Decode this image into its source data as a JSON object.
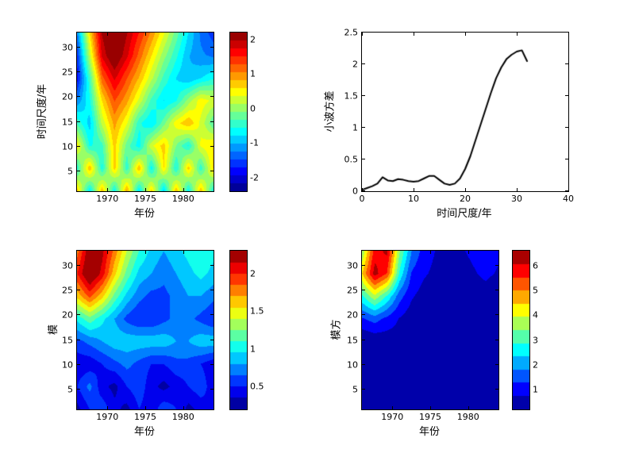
{
  "figure": {
    "background": "#ffffff",
    "colormap": "jet",
    "line_color": "#000000"
  },
  "chart_data": [
    {
      "type": "heatmap",
      "title": "",
      "xlabel": "年份",
      "ylabel": "时间尺度/年",
      "xlim": [
        1966,
        1984
      ],
      "ylim": [
        1,
        33
      ],
      "xticks": [
        1970,
        1975,
        1980
      ],
      "yticks": [
        5,
        10,
        15,
        20,
        25,
        30
      ],
      "colorbar": {
        "vmin": -2.4,
        "vmax": 2.2,
        "levels": 20,
        "ticks": [
          -2,
          -1,
          0,
          1,
          2
        ]
      },
      "heatmap": {
        "vmin": -2.4,
        "vmax": 2.2,
        "levels": 20,
        "grid": [
          [
            0.7,
            -0.8,
            0.8,
            -0.7,
            0.9,
            -0.8,
            0.7,
            -0.9,
            0.8,
            -0.7,
            0.8,
            -0.6
          ],
          [
            -0.5,
            0.8,
            -0.6,
            0.7,
            -0.5,
            0.8,
            -0.7,
            0.6,
            -0.6,
            0.7,
            -0.5,
            0.6
          ],
          [
            0.5,
            -0.6,
            -0.4,
            0.7,
            -0.2,
            -0.7,
            0.3,
            0.7,
            -0.1,
            -0.6,
            0.4,
            0.6
          ],
          [
            -0.4,
            -0.9,
            0.2,
            0.9,
            0.4,
            -0.5,
            -0.8,
            -0.2,
            0.5,
            0.8,
            0.3,
            -0.3
          ],
          [
            -1.2,
            -0.6,
            0.6,
            1.3,
            0.9,
            0.3,
            -0.4,
            -0.8,
            -0.6,
            0.0,
            0.5,
            0.3
          ],
          [
            -1.8,
            -0.4,
            1.2,
            1.8,
            1.3,
            0.8,
            0.2,
            -0.4,
            -0.8,
            -1.0,
            -0.8,
            -0.6
          ],
          [
            -1.6,
            0.2,
            1.8,
            2.3,
            1.8,
            1.2,
            0.6,
            0.0,
            -0.5,
            -1.0,
            -1.2,
            -1.3
          ],
          [
            -1.2,
            0.6,
            2.0,
            2.4,
            2.0,
            1.5,
            1.0,
            0.4,
            -0.2,
            -0.8,
            -1.3,
            -1.6
          ]
        ]
      }
    },
    {
      "type": "line",
      "title": "",
      "xlabel": "时间尺度/年",
      "ylabel": "小波方差",
      "xlim": [
        0,
        40
      ],
      "ylim": [
        0,
        2.5
      ],
      "xticks": [
        0,
        10,
        20,
        30,
        40
      ],
      "yticks": [
        0,
        0.5,
        1,
        1.5,
        2,
        2.5
      ],
      "color": "#000000",
      "x": [
        0,
        1,
        2,
        3,
        4,
        5,
        6,
        7,
        8,
        9,
        10,
        11,
        12,
        13,
        14,
        15,
        16,
        17,
        18,
        19,
        20,
        21,
        22,
        23,
        24,
        25,
        26,
        27,
        28,
        29,
        30,
        31,
        32
      ],
      "y": [
        0.02,
        0.05,
        0.08,
        0.12,
        0.22,
        0.17,
        0.16,
        0.19,
        0.18,
        0.16,
        0.15,
        0.16,
        0.2,
        0.24,
        0.24,
        0.18,
        0.12,
        0.1,
        0.12,
        0.2,
        0.35,
        0.55,
        0.8,
        1.05,
        1.3,
        1.55,
        1.78,
        1.95,
        2.08,
        2.15,
        2.2,
        2.22,
        2.05
      ]
    },
    {
      "type": "heatmap",
      "title": "",
      "xlabel": "年份",
      "ylabel": "模",
      "xlim": [
        1966,
        1984
      ],
      "ylim": [
        1,
        33
      ],
      "xticks": [
        1970,
        1975,
        1980
      ],
      "yticks": [
        5,
        10,
        15,
        20,
        25,
        30
      ],
      "colorbar": {
        "vmin": 0.2,
        "vmax": 2.3,
        "levels": 14,
        "ticks": [
          0.5,
          1,
          1.5,
          2
        ]
      },
      "heatmap": {
        "vmin": 0.2,
        "vmax": 2.3,
        "levels": 14,
        "grid": [
          [
            0.3,
            0.5,
            0.6,
            0.4,
            0.3,
            0.5,
            0.4,
            0.6,
            0.5,
            0.3,
            0.4,
            0.5
          ],
          [
            0.5,
            0.7,
            0.4,
            0.3,
            0.5,
            0.6,
            0.4,
            0.3,
            0.4,
            0.5,
            0.6,
            0.4
          ],
          [
            0.4,
            0.4,
            0.5,
            0.6,
            0.7,
            0.6,
            0.5,
            0.5,
            0.6,
            0.6,
            0.5,
            0.4
          ],
          [
            0.6,
            0.7,
            0.8,
            0.9,
            0.9,
            0.9,
            0.9,
            0.9,
            0.8,
            0.8,
            0.9,
            0.9
          ],
          [
            1.0,
            1.2,
            1.0,
            0.8,
            0.6,
            0.5,
            0.5,
            0.6,
            0.7,
            0.7,
            0.6,
            0.5
          ],
          [
            1.6,
            1.9,
            1.6,
            1.2,
            0.9,
            0.7,
            0.6,
            0.6,
            0.7,
            0.8,
            0.8,
            0.7
          ],
          [
            2.0,
            2.4,
            2.1,
            1.6,
            1.2,
            0.9,
            0.8,
            0.7,
            0.8,
            0.9,
            1.0,
            0.9
          ],
          [
            1.8,
            2.3,
            2.2,
            1.8,
            1.4,
            1.1,
            0.9,
            0.8,
            0.9,
            1.0,
            1.1,
            1.0
          ]
        ]
      }
    },
    {
      "type": "heatmap",
      "title": "",
      "xlabel": "年份",
      "ylabel": "模方",
      "xlim": [
        1966,
        1984
      ],
      "ylim": [
        1,
        33
      ],
      "xticks": [
        1970,
        1975,
        1980
      ],
      "yticks": [
        5,
        10,
        15,
        20,
        25,
        30
      ],
      "colorbar": {
        "vmin": 0.2,
        "vmax": 6.6,
        "levels": 12,
        "ticks": [
          1,
          2,
          3,
          4,
          5,
          6
        ]
      },
      "heatmap": {
        "vmin": 0.2,
        "vmax": 6.6,
        "levels": 12,
        "grid": [
          [
            0.1,
            0.2,
            0.3,
            0.2,
            0.1,
            0.2,
            0.2,
            0.3,
            0.2,
            0.1,
            0.2,
            0.2
          ],
          [
            0.2,
            0.4,
            0.2,
            0.1,
            0.2,
            0.3,
            0.2,
            0.1,
            0.2,
            0.2,
            0.3,
            0.2
          ],
          [
            0.2,
            0.2,
            0.3,
            0.3,
            0.4,
            0.3,
            0.3,
            0.3,
            0.3,
            0.3,
            0.3,
            0.2
          ],
          [
            0.2,
            0.3,
            0.4,
            0.5,
            0.6,
            0.6,
            0.6,
            0.6,
            0.5,
            0.5,
            0.6,
            0.6
          ],
          [
            1.2,
            1.5,
            1.1,
            0.7,
            0.4,
            0.3,
            0.3,
            0.3,
            0.4,
            0.5,
            0.4,
            0.3
          ],
          [
            2.8,
            3.8,
            2.8,
            1.5,
            0.8,
            0.5,
            0.4,
            0.4,
            0.5,
            0.6,
            0.6,
            0.5
          ],
          [
            4.5,
            6.3,
            5.5,
            2.8,
            1.2,
            0.8,
            0.6,
            0.5,
            0.6,
            0.7,
            0.8,
            0.7
          ],
          [
            3.5,
            5.8,
            6.2,
            3.5,
            1.8,
            1.0,
            0.7,
            0.6,
            0.7,
            0.8,
            0.9,
            0.8
          ]
        ]
      }
    }
  ]
}
